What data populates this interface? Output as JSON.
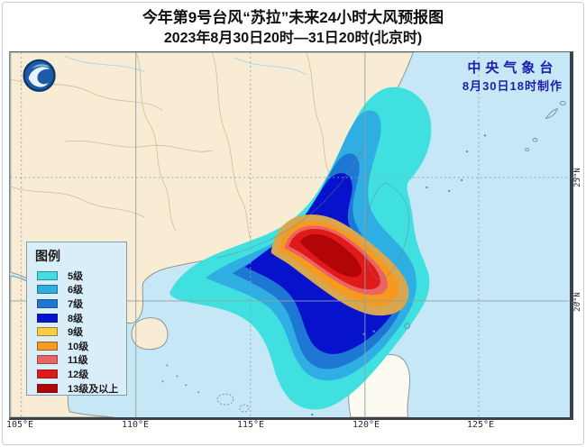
{
  "title": {
    "line1": "今年第9号台风“苏拉”未来24小时大风预报图",
    "line2": "2023年8月30日20时—31日20时(北京时)"
  },
  "credit": {
    "org": "中央气象台",
    "time": "8月30日18时制作"
  },
  "legend": {
    "title": "图例",
    "items": [
      {
        "label": "5级",
        "color": "#3FE0DF"
      },
      {
        "label": "6级",
        "color": "#2FAEE3"
      },
      {
        "label": "7级",
        "color": "#1E77D3"
      },
      {
        "label": "8级",
        "color": "#0712CD"
      },
      {
        "label": "9级",
        "color": "#F9CE45",
        "map_color": "#D8A64F"
      },
      {
        "label": "10级",
        "color": "#F5991F"
      },
      {
        "label": "11级",
        "color": "#E96462"
      },
      {
        "label": "12级",
        "color": "#E01A1A"
      },
      {
        "label": "13级及以上",
        "color": "#B20505"
      }
    ]
  },
  "axis": {
    "lon": [
      "105°E",
      "110°E",
      "115°E",
      "120°E",
      "125°E"
    ],
    "lat": [
      "25°N",
      "20°N"
    ]
  },
  "logo": {
    "name": "cma-logo"
  },
  "colors": {
    "sea": "#C6E7F5",
    "land": "#F8EDD4",
    "land2": "#FBF5E4",
    "land3": "#FCFAF1",
    "coast": "#8C9696",
    "prov": "#CFBD97",
    "river": "#A8D8EC",
    "grid": "#8FA0A8",
    "frameDark": "#39404E",
    "legendBg": "#D9EEF8",
    "credit": "#1C1CAE"
  }
}
